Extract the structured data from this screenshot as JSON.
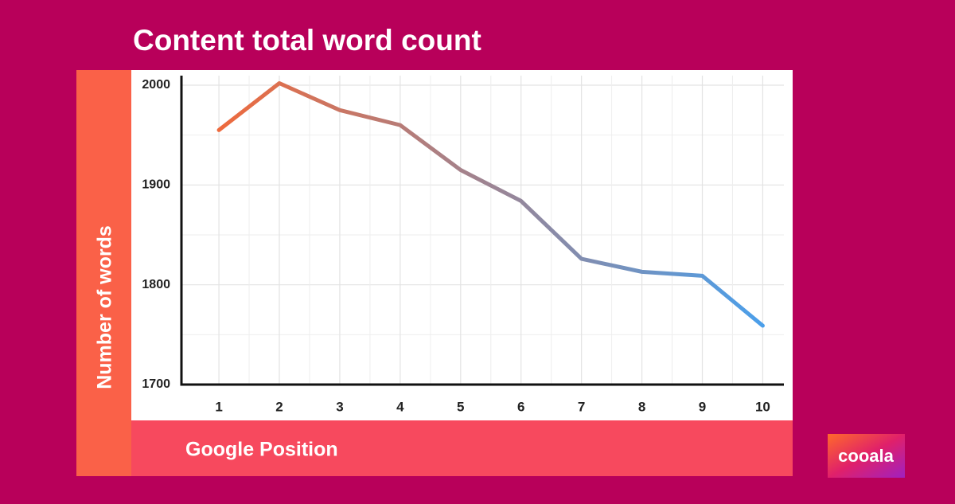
{
  "chart_data": {
    "type": "line",
    "title": "Content total word count",
    "x_label": "Google Position",
    "y_label": "Number of words",
    "x": [
      1,
      2,
      3,
      4,
      5,
      6,
      7,
      8,
      9,
      10
    ],
    "series": [
      {
        "name": "Number of words",
        "color": [
          "#ee6a3d",
          "#4b9fea"
        ],
        "values": [
          1955,
          2002,
          1975,
          1960,
          1915,
          1884,
          1826,
          1813,
          1809,
          1759
        ]
      }
    ],
    "xlim": [
      0.38,
      10.35
    ],
    "xticks": [
      1,
      2,
      3,
      4,
      5,
      6,
      7,
      8,
      9,
      10
    ],
    "ylim": [
      1700,
      2000
    ],
    "yticks": [
      1700,
      1800,
      1900,
      2000
    ],
    "grid": true
  },
  "logo": {
    "text": "cooala"
  }
}
